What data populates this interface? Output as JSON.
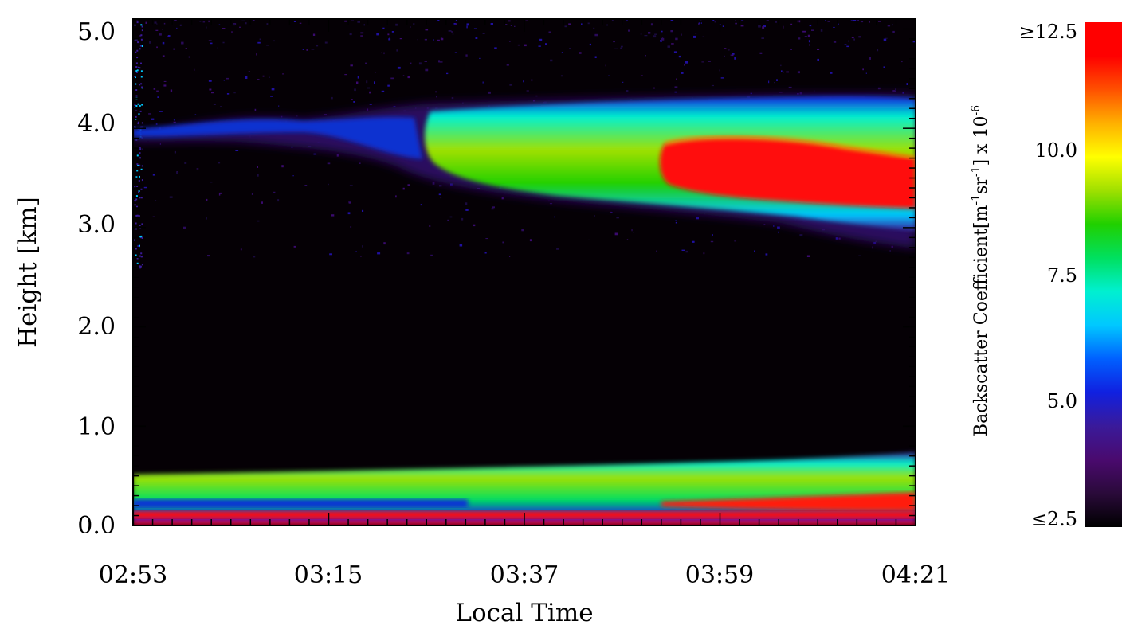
{
  "chart_data": {
    "type": "heatmap",
    "xlabel": "Local Time",
    "ylabel": "Height [km]",
    "x_ticks": [
      "02:53",
      "03:15",
      "03:37",
      "03:59",
      "04:21"
    ],
    "y_ticks": [
      "0.0",
      "1.0",
      "2.0",
      "3.0",
      "4.0",
      "5.0"
    ],
    "xlim": [
      "02:53",
      "04:21"
    ],
    "ylim": [
      0,
      5.1
    ],
    "colorbar": {
      "label_parts": {
        "base": "Backscatter Coefficient[m",
        "sup1": "-1",
        "mid": "sr",
        "sup2": "-1",
        "tail": "] x 10",
        "sup3": "-6"
      },
      "ticks": [
        "≤2.5",
        "5.0",
        "7.5",
        "10.0",
        "≥12.5"
      ],
      "range": [
        2.5,
        12.5
      ],
      "colormap": "rainbow (black-purple-blue-cyan-green-yellow-red)"
    },
    "features": [
      {
        "name": "elevated aerosol layer",
        "time_start": "02:53",
        "time_end": "04:21",
        "height_bottom_km": [
          3.8,
          3.0
        ],
        "height_top_km": [
          4.0,
          4.3
        ],
        "peak_value": 12.5,
        "peak_time_range": [
          "03:56",
          "04:21"
        ],
        "peak_height_km": [
          3.2,
          3.7
        ]
      },
      {
        "name": "boundary layer",
        "time_start": "02:53",
        "time_end": "04:21",
        "height_top_km": [
          0.5,
          0.7
        ],
        "peak_value": 12.5
      }
    ],
    "grid": false,
    "legend": "colorbar-right"
  },
  "colors": {
    "background": "#ffffff",
    "plot_background": "#050005",
    "cmap": [
      "#000000",
      "#2a0a3a",
      "#4a0a6e",
      "#3a1a9a",
      "#1020e0",
      "#0060ff",
      "#00c8ff",
      "#00f0d0",
      "#00e060",
      "#20d000",
      "#a0e000",
      "#ffff00",
      "#ffb000",
      "#ff5000",
      "#ff0000",
      "#ff0000"
    ]
  }
}
